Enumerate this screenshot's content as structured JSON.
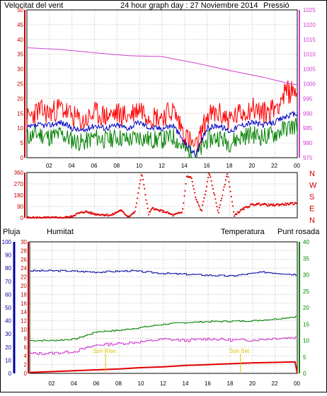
{
  "header": {
    "left_title": "Velocitat del vent",
    "center_title": "24 hour graph day : 27 Noviembre 2014",
    "right_title": "Pressió"
  },
  "bottom_header": {
    "rain": "Pluja",
    "humidity": "Humitat",
    "temperature": "Temperatura",
    "dewpoint": "Punt rosada"
  },
  "colors": {
    "wind_gust": "#ff0000",
    "wind_avg": "#0000c0",
    "wind_low": "#008000",
    "pressure": "#d040d0",
    "direction": "#e00000",
    "rain": "#e00000",
    "humidity": "#0000a0",
    "temperature": "#008000",
    "dewpoint": "#cc33cc",
    "sun": "#e0c000",
    "rain_axis": "#0000a0",
    "temp_axis": "#008000"
  },
  "chart_data": [
    {
      "type": "line",
      "name": "wind-pressure",
      "x_ticks": [
        "02",
        "04",
        "06",
        "08",
        "10",
        "12",
        "14",
        "16",
        "18",
        "20",
        "22",
        "00"
      ],
      "y_left_ticks": [
        "0",
        "5",
        "10",
        "15",
        "20",
        "25",
        "30",
        "35",
        "40",
        "45",
        "50"
      ],
      "y_left_range": [
        0,
        50
      ],
      "y_right_ticks": [
        "975",
        "980",
        "985",
        "990",
        "995",
        "1000",
        "1005",
        "1010",
        "1015",
        "1020",
        "1025"
      ],
      "y_right_range": [
        975,
        1025
      ],
      "pressure_x": [
        0,
        3,
        6,
        9,
        12,
        15,
        18,
        21,
        22.5,
        24
      ],
      "pressure_y": [
        1012.2,
        1011.6,
        1010.5,
        1009.5,
        1009.2,
        1007.0,
        1004.5,
        1002.2,
        1000.8,
        999.6
      ],
      "gust_x": [
        0,
        1,
        2,
        3,
        4,
        5,
        6,
        7,
        8,
        9,
        10,
        11,
        12,
        13,
        14,
        15,
        16,
        17,
        18,
        19,
        20,
        21,
        22,
        23,
        24
      ],
      "gust_y": [
        13,
        16,
        15,
        17,
        14,
        12,
        15,
        14,
        15,
        14,
        17,
        14,
        14,
        16,
        8,
        3,
        14,
        15,
        13,
        15,
        17,
        15,
        17,
        22,
        23
      ],
      "avg_x": [
        0,
        1,
        2,
        3,
        4,
        5,
        6,
        7,
        8,
        9,
        10,
        11,
        12,
        13,
        14,
        15,
        16,
        17,
        18,
        19,
        20,
        21,
        22,
        23,
        24
      ],
      "avg_y": [
        10,
        11,
        11,
        12,
        10,
        9,
        11,
        10,
        11,
        10,
        12,
        10,
        10,
        11,
        5,
        1,
        10,
        11,
        9,
        11,
        12,
        11,
        12,
        14,
        15
      ],
      "low_x": [
        0,
        1,
        2,
        3,
        4,
        5,
        6,
        7,
        8,
        9,
        10,
        11,
        12,
        13,
        14,
        15,
        16,
        17,
        18,
        19,
        20,
        21,
        22,
        23,
        24
      ],
      "low_y": [
        7,
        8,
        7,
        8,
        6,
        5,
        7,
        6,
        7,
        6,
        7,
        6,
        6,
        7,
        3,
        0,
        6,
        7,
        5,
        7,
        8,
        7,
        8,
        10,
        11
      ]
    },
    {
      "type": "scatter",
      "name": "wind-direction",
      "y_ticks": [
        "0",
        "90",
        "180",
        "270",
        "360"
      ],
      "y_range": [
        0,
        360
      ],
      "compass_labels": [
        "N",
        "W",
        "S",
        "E",
        "N"
      ],
      "x": [
        0,
        1,
        2,
        3,
        3.8,
        4.4,
        5.2,
        6.0,
        6.8,
        7.5,
        8.3,
        9.0,
        9.6,
        10.2,
        10.8,
        11.2,
        11.6,
        12.2,
        13.0,
        13.8,
        14.2,
        14.6,
        15.0,
        15.5,
        16.2,
        17.0,
        17.8,
        18.4,
        19.2,
        20.0,
        20.8,
        21.6,
        22.4,
        23.2,
        24
      ],
      "y": [
        0,
        0,
        0,
        0,
        5,
        30,
        50,
        30,
        25,
        20,
        60,
        10,
        45,
        360,
        30,
        80,
        60,
        50,
        20,
        45,
        330,
        320,
        150,
        50,
        360,
        40,
        360,
        20,
        70,
        105,
        110,
        100,
        105,
        110,
        115
      ]
    },
    {
      "type": "line",
      "name": "rain-humidity-temperature",
      "y_rain_ticks": [
        "0",
        "10",
        "20",
        "30",
        "40",
        "50",
        "60",
        "70",
        "80",
        "90",
        "100"
      ],
      "y_rain_range": [
        0,
        100
      ],
      "y_left_ticks": [
        "0",
        "2",
        "4",
        "6",
        "8",
        "10",
        "12",
        "14",
        "16",
        "18",
        "20",
        "22",
        "24",
        "26",
        "28",
        "30"
      ],
      "y_left_range": [
        0,
        30
      ],
      "y_right_ticks": [
        "0",
        "5",
        "10",
        "15",
        "20",
        "25",
        "30",
        "35",
        "40"
      ],
      "y_right_range": [
        0,
        40
      ],
      "humidity_x": [
        0,
        3,
        6,
        9,
        12,
        15,
        18,
        21,
        24
      ],
      "humidity_y": [
        78,
        78,
        77,
        78,
        76,
        75,
        74,
        77,
        75
      ],
      "temperature_x": [
        0,
        2,
        4,
        6,
        8,
        10,
        12,
        14,
        16,
        18,
        20,
        22,
        24
      ],
      "temperature_y": [
        7.5,
        7.5,
        7.8,
        9.5,
        9.8,
        10.5,
        11.2,
        11.6,
        11.8,
        11.9,
        12.0,
        12.4,
        13.0
      ],
      "dewpoint_x": [
        0,
        2,
        4,
        6,
        8,
        10,
        12,
        14,
        16,
        18,
        20,
        22,
        24
      ],
      "dewpoint_y": [
        4.5,
        4.6,
        5.0,
        6.5,
        6.8,
        7.2,
        7.8,
        7.5,
        7.9,
        7.6,
        7.6,
        8.0,
        8.2
      ],
      "rain_x": [
        0,
        2,
        4,
        6,
        8,
        10,
        12,
        14,
        16,
        18,
        20,
        22,
        23.5,
        23.8,
        24
      ],
      "rain_y": [
        0.2,
        0.4,
        0.6,
        0.8,
        1.0,
        1.3,
        1.5,
        1.8,
        2.0,
        2.2,
        2.4,
        2.5,
        2.6,
        2.6,
        0
      ],
      "sunrise_label": "Sun Rise",
      "sunset_label": "Sun Set",
      "sunrise_x": 6.8,
      "sunset_x": 18.9
    }
  ]
}
